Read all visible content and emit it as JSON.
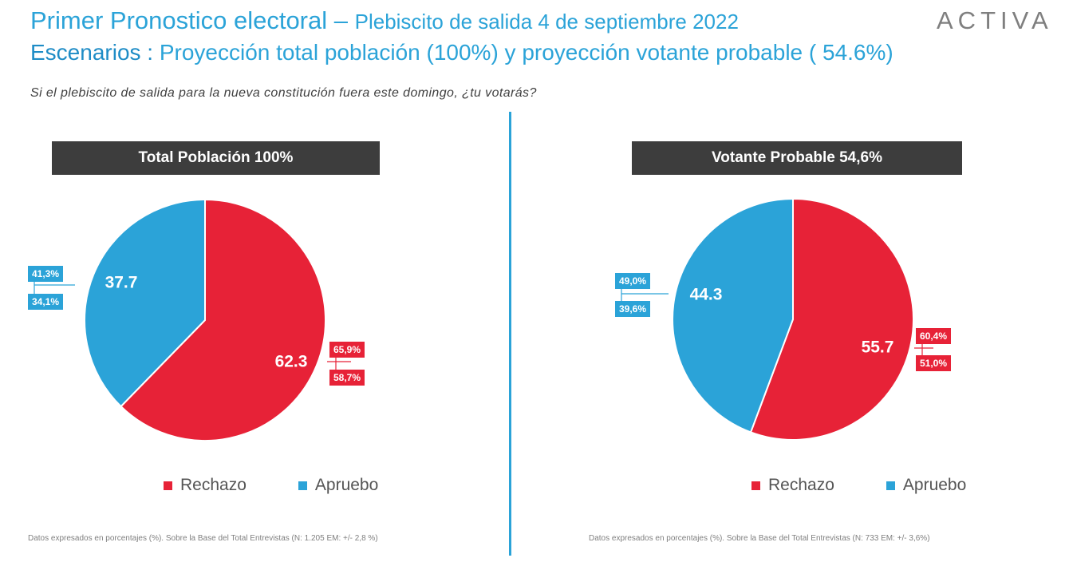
{
  "header": {
    "title_main": "Primer Pronostico electoral",
    "title_sep": " – ",
    "title_sub": "Plebiscito de salida 4 de septiembre 2022",
    "scenarios_lead": "Escenarios :",
    "scenarios_text": " Proyección total población (100%) y proyección votante probable ( 54.6%)",
    "question": "Si el plebiscito de salida para la nueva constitución fuera este domingo, ¿tu votarás?",
    "logo": "ACTIVA"
  },
  "colors": {
    "accent": "#2ba3d8",
    "rechazo": "#e72237",
    "apruebo": "#2ba3d8",
    "header_bg": "#3d3d3d"
  },
  "chart_data": [
    {
      "type": "pie",
      "title": "Total Población 100%",
      "categories": [
        "Rechazo",
        "Apruebo"
      ],
      "values": [
        62.3,
        37.7
      ],
      "value_labels": [
        "62.3",
        "37.7"
      ],
      "colors": [
        "#e72237",
        "#2ba3d8"
      ],
      "ranges": {
        "Rechazo": [
          "65,9%",
          "58,7%"
        ],
        "Apruebo": [
          "41,3%",
          "34,1%"
        ]
      },
      "legend": [
        "Rechazo",
        "Apruebo"
      ],
      "legend_position": "bottom",
      "footnote": "Datos expresados en porcentajes (%). Sobre la Base del Total Entrevistas (N: 1.205  EM: +/- 2,8 %)"
    },
    {
      "type": "pie",
      "title": "Votante Probable 54,6%",
      "categories": [
        "Rechazo",
        "Apruebo"
      ],
      "values": [
        55.7,
        44.3
      ],
      "value_labels": [
        "55.7",
        "44.3"
      ],
      "colors": [
        "#e72237",
        "#2ba3d8"
      ],
      "ranges": {
        "Rechazo": [
          "60,4%",
          "51,0%"
        ],
        "Apruebo": [
          "49,0%",
          "39,6%"
        ]
      },
      "legend": [
        "Rechazo",
        "Apruebo"
      ],
      "legend_position": "bottom",
      "footnote": "Datos expresados en porcentajes (%). Sobre la Base del Total Entrevistas (N: 733  EM: +/- 3,6%)"
    }
  ]
}
